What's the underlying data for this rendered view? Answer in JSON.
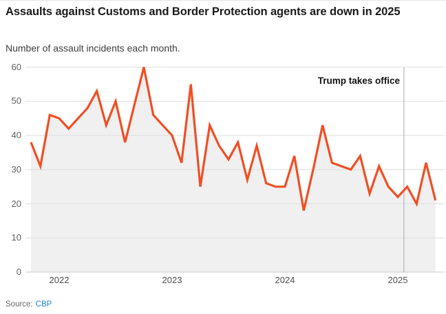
{
  "header": {
    "title": "Assaults against Customs and Border Protection agents are down in 2025",
    "subtitle": "Number of assault incidents each month."
  },
  "annotation": {
    "label": "Trump takes office",
    "date": "2025-01-20",
    "x_month_index": 39.65
  },
  "source": {
    "prefix": "Source:",
    "link": "CBP"
  },
  "colors": {
    "line": "#f04e23",
    "area_fill": "#f0f0f0",
    "grid": "#dedede",
    "baseline": "#c9c9c9",
    "annotation_line": "#ababab",
    "link": "#2184c7",
    "title_text": "#1a1a1a",
    "axis_text": "#5e5e5e"
  },
  "chart_data": {
    "type": "line",
    "title": "Assaults against Customs and Border Protection agents are down in 2025",
    "subtitle": "Number of assault incidents each month.",
    "xlabel": "",
    "ylabel": "Number of assault incidents each month",
    "ylim": [
      0,
      60
    ],
    "yticks": [
      0,
      10,
      20,
      30,
      40,
      50,
      60
    ],
    "grid": true,
    "area_fill": true,
    "legend": "none",
    "x": [
      "2021-10",
      "2021-11",
      "2021-12",
      "2022-01",
      "2022-02",
      "2022-03",
      "2022-04",
      "2022-05",
      "2022-06",
      "2022-07",
      "2022-08",
      "2022-09",
      "2022-10",
      "2022-11",
      "2022-12",
      "2023-01",
      "2023-02",
      "2023-03",
      "2023-04",
      "2023-05",
      "2023-06",
      "2023-07",
      "2023-08",
      "2023-09",
      "2023-10",
      "2023-11",
      "2023-12",
      "2024-01",
      "2024-02",
      "2024-03",
      "2024-04",
      "2024-05",
      "2024-06",
      "2024-07",
      "2024-08",
      "2024-09",
      "2024-10",
      "2024-11",
      "2024-12",
      "2025-01",
      "2025-02",
      "2025-03",
      "2025-04",
      "2025-05"
    ],
    "values": [
      38,
      31,
      46,
      45,
      42,
      45,
      48,
      53,
      43,
      50,
      38,
      49,
      60,
      46,
      43,
      40,
      32,
      55,
      25,
      43,
      37,
      33,
      38,
      27,
      37,
      26,
      25,
      25,
      34,
      18,
      30,
      43,
      32,
      31,
      30,
      34,
      23,
      31,
      25,
      22,
      25,
      20,
      32,
      21
    ],
    "year_labels": [
      {
        "label": "2022",
        "month_index": 3
      },
      {
        "label": "2023",
        "month_index": 15
      },
      {
        "label": "2024",
        "month_index": 27
      },
      {
        "label": "2025",
        "month_index": 39
      }
    ]
  }
}
